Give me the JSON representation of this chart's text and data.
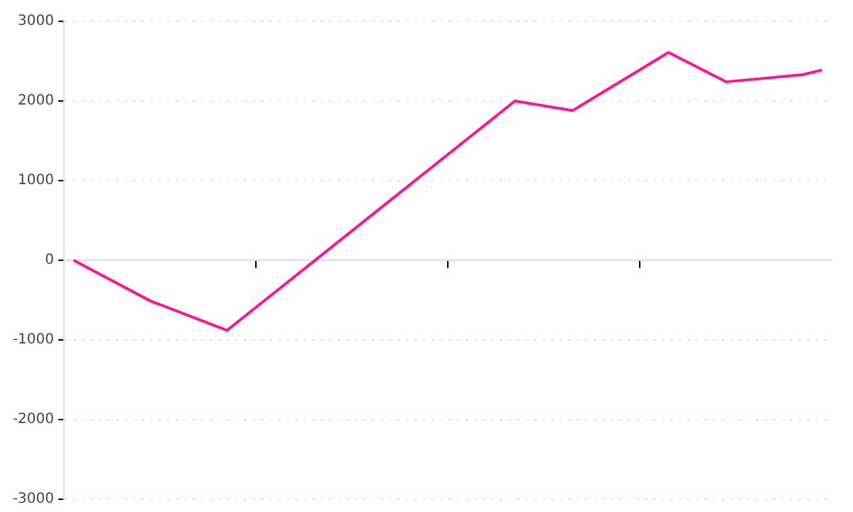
{
  "chart_data": {
    "type": "line",
    "categories": [
      null,
      null,
      null,
      null,
      null,
      null,
      null,
      null,
      null,
      null,
      null,
      null,
      null,
      null,
      null,
      null,
      null,
      null,
      null,
      null,
      null,
      null,
      null,
      null,
      null,
      null,
      null,
      null,
      null,
      null,
      null,
      null,
      null,
      null,
      null,
      null,
      null,
      null,
      null,
      null
    ],
    "series": [
      {
        "color": "#ff1493",
        "values": [
          0,
          null,
          null,
          null,
          -510,
          null,
          null,
          null,
          -880,
          null,
          null,
          null,
          null,
          null,
          null,
          null,
          null,
          null,
          null,
          null,
          null,
          null,
          null,
          2000,
          null,
          null,
          1880,
          null,
          null,
          null,
          null,
          2610,
          null,
          null,
          2240,
          null,
          null,
          null,
          2330,
          2390
        ]
      }
    ],
    "ylim": [
      -3000,
      3000
    ],
    "yticks": [
      -3000,
      -2000,
      -1000,
      0,
      1000,
      2000,
      3000
    ],
    "tick_labels": "y",
    "grid": "y",
    "legend": false,
    "marker": "none",
    "line_style": "solid"
  }
}
